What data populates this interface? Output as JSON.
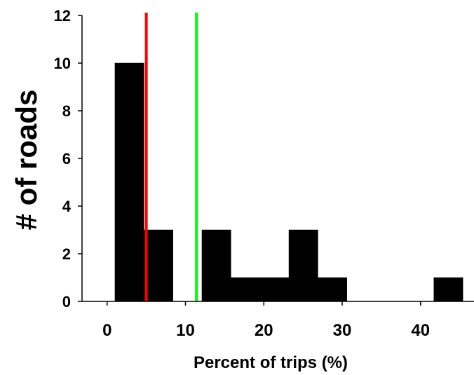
{
  "chart_data": {
    "type": "bar",
    "title": "",
    "xlabel": "Percent of trips (%)",
    "ylabel": "# of roads",
    "xlim": [
      -3.2,
      47
    ],
    "ylim": [
      0,
      12
    ],
    "xticks": [
      0,
      10,
      20,
      30,
      40
    ],
    "yticks": [
      0,
      2,
      4,
      6,
      8,
      10,
      12
    ],
    "grid": false,
    "bin_edges": [
      1.0,
      4.7,
      8.4,
      12.1,
      15.8,
      19.5,
      23.2,
      26.9,
      30.6,
      34.3,
      38.0,
      41.7,
      45.4
    ],
    "values": [
      10,
      3,
      0,
      3,
      1,
      1,
      3,
      1,
      0,
      0,
      0,
      1
    ],
    "vlines": [
      {
        "x": 5.0,
        "color": "#ff0000"
      },
      {
        "x": 11.4,
        "color": "#00ff00"
      }
    ],
    "bar_color": "#000000"
  }
}
